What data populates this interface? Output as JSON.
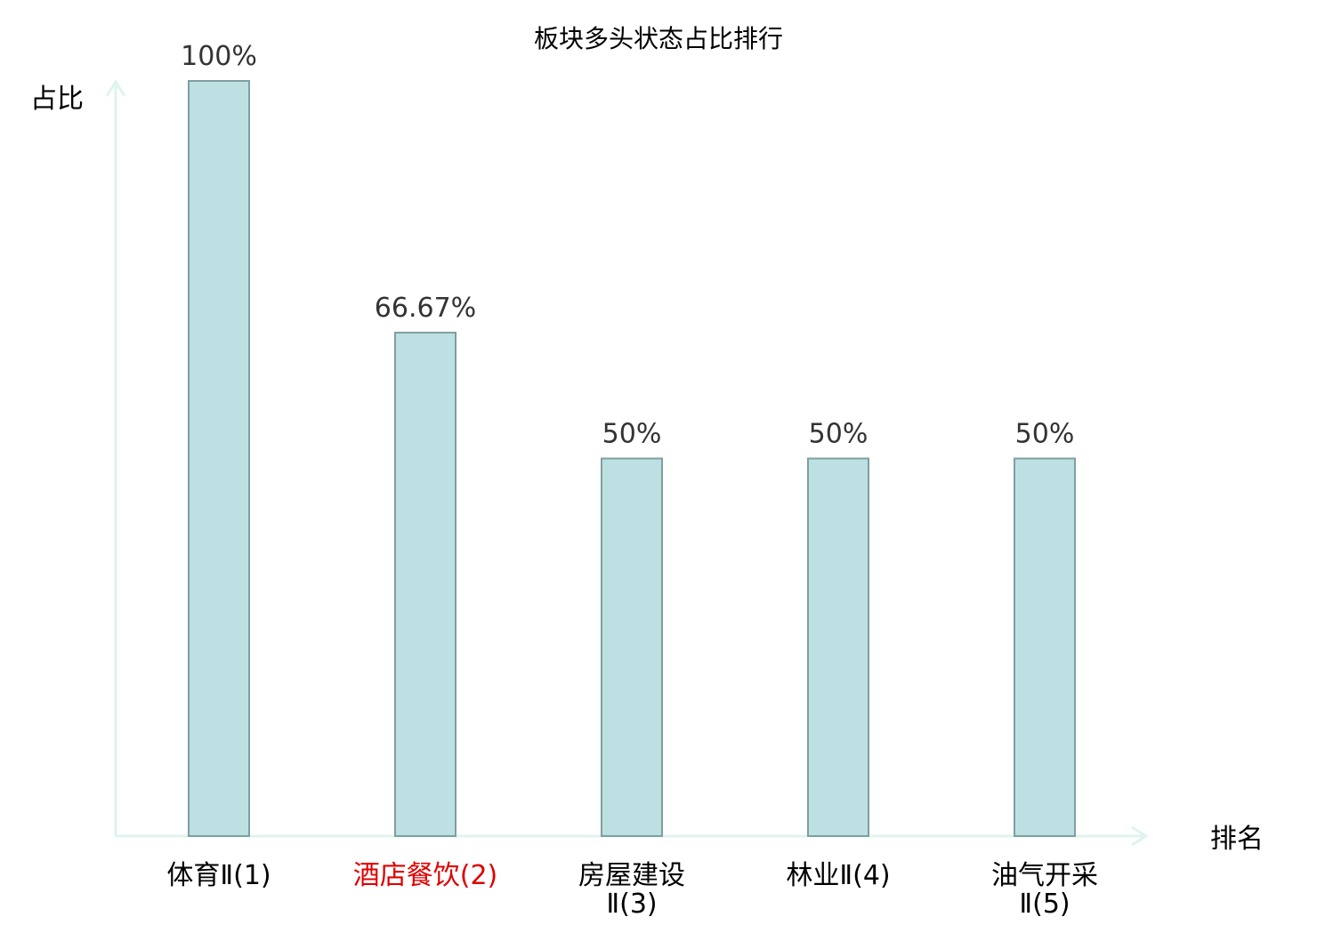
{
  "chart_data": {
    "type": "bar",
    "title": "板块多头状态占比排行",
    "ylabel": "占比",
    "xlabel": "排名",
    "ylim": [
      0,
      100
    ],
    "grid": false,
    "categories": [
      "体育Ⅱ(1)",
      "酒店餐饮(2)",
      "房屋建设Ⅱ(3)",
      "林业Ⅱ(4)",
      "油气开采Ⅱ(5)"
    ],
    "category_lines": [
      [
        "体育Ⅱ(1)"
      ],
      [
        "酒店餐饮(2)"
      ],
      [
        "房屋建设",
        "Ⅱ(3)"
      ],
      [
        "林业Ⅱ(4)"
      ],
      [
        "油气开采",
        "Ⅱ(5)"
      ]
    ],
    "category_colors": [
      "#000000",
      "#e00000",
      "#000000",
      "#000000",
      "#000000"
    ],
    "values": [
      100,
      66.67,
      50,
      50,
      50
    ],
    "value_labels": [
      "100%",
      "66.67%",
      "50%",
      "50%",
      "50%"
    ],
    "colors": {
      "bar_fill": "#bde0e2",
      "bar_stroke": "#7f9fa0",
      "axis": "#dff3ef"
    }
  }
}
